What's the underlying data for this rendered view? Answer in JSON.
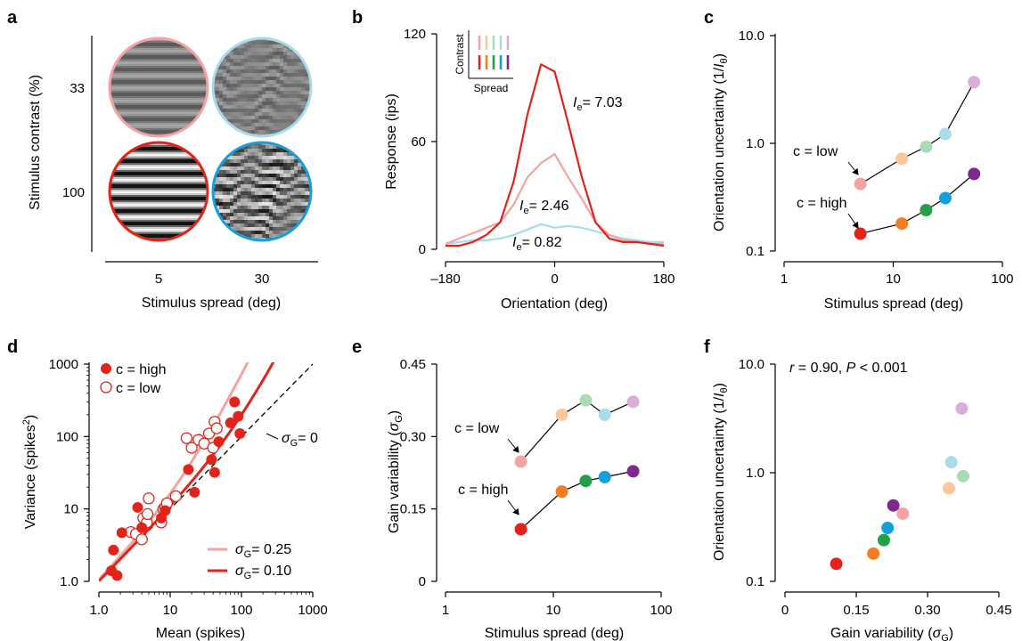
{
  "colors": {
    "low": [
      "#f4a3a3",
      "#fbc89b",
      "#a9dcb4",
      "#a9dcea",
      "#d9afd9"
    ],
    "high": [
      "#e2231a",
      "#f47d20",
      "#22a04a",
      "#16a0db",
      "#7d2a8f"
    ],
    "red": "#e2231a",
    "pink": "#f4a3a3",
    "lightblue": "#a9dcea"
  },
  "chart_data": [
    {
      "panel": "a",
      "type": "other",
      "xlabel": "Stimulus spread (deg)",
      "ylabel": "Stimulus contrast (%)",
      "x_categories": [
        "5",
        "30"
      ],
      "y_categories": [
        "33",
        "100"
      ],
      "stimuli": [
        {
          "contrast": "33",
          "spread": "5",
          "color": "#f4a3a3"
        },
        {
          "contrast": "33",
          "spread": "30",
          "color": "#a9dcea"
        },
        {
          "contrast": "100",
          "spread": "5",
          "color": "#e2231a"
        },
        {
          "contrast": "100",
          "spread": "30",
          "color": "#16a0db"
        }
      ]
    },
    {
      "panel": "b",
      "type": "line",
      "xlabel": "Orientation (deg)",
      "ylabel": "Response (ips)",
      "xlim": [
        -180,
        180
      ],
      "ylim": [
        0,
        120
      ],
      "xticks": [
        "–180",
        "0",
        "180"
      ],
      "yticks": [
        "0",
        "60",
        "120"
      ],
      "x": [
        -180,
        -157.5,
        -135,
        -112.5,
        -90,
        -67.5,
        -45,
        -22.5,
        0,
        22.5,
        45,
        67.5,
        90,
        112.5,
        135,
        157.5,
        180
      ],
      "series": [
        {
          "color": "#e2231a",
          "values": [
            2,
            2,
            4,
            8,
            15,
            38,
            75,
            103,
            99,
            70,
            40,
            15,
            6,
            4,
            4,
            3,
            2
          ]
        },
        {
          "color": "#f4a3a3",
          "values": [
            3,
            6,
            9,
            12,
            15,
            25,
            40,
            48,
            53,
            40,
            28,
            15,
            8,
            5,
            4,
            3,
            3
          ]
        },
        {
          "color": "#a9dcea",
          "values": [
            3,
            4,
            5,
            5,
            6,
            8,
            11,
            14,
            12,
            13,
            12,
            10,
            8,
            6,
            5,
            4,
            4
          ]
        }
      ],
      "labels": [
        {
          "prefix": "I",
          "sub": "e",
          "value": "= 7.03"
        },
        {
          "prefix": "I",
          "sub": "e",
          "value": "= 2.46"
        },
        {
          "prefix": "I",
          "sub": "e",
          "value": "= 0.82"
        }
      ],
      "inset": {
        "ylabel": "Contrast",
        "xlabel": "Spread"
      }
    },
    {
      "panel": "c",
      "type": "scatter",
      "xlabel": "Stimulus spread (deg)",
      "ylabel": "Orientation uncertainty (1/",
      "ylabel_var": "I",
      "ylabel_sub": "θ",
      "ylabel_end": ")",
      "xscale": "log",
      "yscale": "log",
      "xlim": [
        1,
        100
      ],
      "ylim": [
        0.1,
        10
      ],
      "xticks": [
        "1",
        "10",
        "100"
      ],
      "yticks": [
        "0.1",
        "1.0",
        "10.0"
      ],
      "x": [
        5,
        12,
        20,
        30,
        55
      ],
      "series": [
        {
          "name": "c = low",
          "values": [
            0.42,
            0.72,
            0.93,
            1.22,
            3.7
          ]
        },
        {
          "name": "c = high",
          "values": [
            0.145,
            0.18,
            0.24,
            0.31,
            0.52
          ]
        }
      ]
    },
    {
      "panel": "d",
      "type": "scatter",
      "xlabel": "Mean (spikes)",
      "ylabel": "Variance (spikes",
      "ylabel_sup": "2",
      "ylabel_end": ")",
      "xscale": "log",
      "yscale": "log",
      "xlim": [
        1,
        1000
      ],
      "ylim": [
        1,
        1000
      ],
      "xticks": [
        "1.0",
        "10",
        "100",
        "1000"
      ],
      "yticks": [
        "1.0",
        "10",
        "100",
        "1000"
      ],
      "legend": {
        "position": "top-left",
        "entries": [
          "c = high",
          "c = low"
        ]
      },
      "series": [
        {
          "name": "c = high",
          "x": [
            1.5,
            1.6,
            1.8,
            2.1,
            3.5,
            4.0,
            7.5,
            8.5,
            18,
            22,
            38,
            42,
            48,
            70,
            80,
            90,
            95
          ],
          "values": [
            1.4,
            2.7,
            1.2,
            4.7,
            10.5,
            5.5,
            7.5,
            9.5,
            35,
            17,
            48,
            32,
            85,
            155,
            300,
            190,
            110
          ]
        },
        {
          "name": "c = low",
          "x": [
            2.8,
            3.3,
            4.0,
            4.2,
            4.7,
            4.8,
            5.0,
            7.5,
            8.0,
            8.5,
            9.0,
            12,
            17,
            20,
            25,
            30,
            35,
            40,
            42,
            45
          ],
          "values": [
            4.8,
            4.5,
            3.8,
            7.5,
            6.5,
            8.5,
            14,
            6.5,
            10,
            10.5,
            12,
            15,
            95,
            70,
            90,
            80,
            110,
            70,
            160,
            130
          ]
        }
      ],
      "lines": [
        {
          "label": "σ",
          "sub": "G",
          "value": "= 0",
          "style": "dashed"
        },
        {
          "label": "σ",
          "sub": "G",
          "value": "= 0.25",
          "color": "#f4a3a3"
        },
        {
          "label": "σ",
          "sub": "G",
          "value": "= 0.10",
          "color": "#e2231a"
        }
      ]
    },
    {
      "panel": "e",
      "type": "scatter",
      "xlabel": "Stimulus spread (deg)",
      "ylabel": "Gain variability (",
      "ylabel_var": "σ",
      "ylabel_sub": "G",
      "ylabel_end": ")",
      "xscale": "log",
      "xlim": [
        1,
        100
      ],
      "ylim": [
        0,
        0.45
      ],
      "xticks": [
        "1",
        "10",
        "100"
      ],
      "yticks": [
        "0",
        "0.15",
        "0.30",
        "0.45"
      ],
      "x": [
        5,
        12,
        20,
        30,
        55
      ],
      "series": [
        {
          "name": "c = low",
          "values": [
            0.248,
            0.345,
            0.375,
            0.345,
            0.372
          ]
        },
        {
          "name": "c = high",
          "values": [
            0.108,
            0.186,
            0.208,
            0.216,
            0.228
          ]
        }
      ]
    },
    {
      "panel": "f",
      "type": "scatter",
      "xlabel": "Gain variability (",
      "xlabel_var": "σ",
      "xlabel_sub": "G",
      "xlabel_end": ")",
      "ylabel": "Orientation uncertainty (1/",
      "ylabel_var": "I",
      "ylabel_sub": "θ",
      "ylabel_end": ")",
      "yscale": "log",
      "xlim": [
        0,
        0.45
      ],
      "ylim": [
        0.1,
        10
      ],
      "xticks": [
        "0",
        "0.15",
        "0.30",
        "0.45"
      ],
      "yticks": [
        "0.1",
        "1.0",
        "10.0"
      ],
      "stats": {
        "r_label": "r",
        "r_value": " = 0.90, ",
        "p_label": "P",
        "p_value": " < 0.001"
      },
      "points": [
        {
          "x": 0.108,
          "y": 0.145,
          "color": "#e2231a"
        },
        {
          "x": 0.186,
          "y": 0.18,
          "color": "#f47d20"
        },
        {
          "x": 0.208,
          "y": 0.24,
          "color": "#22a04a"
        },
        {
          "x": 0.216,
          "y": 0.31,
          "color": "#16a0db"
        },
        {
          "x": 0.228,
          "y": 0.5,
          "color": "#7d2a8f"
        },
        {
          "x": 0.248,
          "y": 0.42,
          "color": "#f4a3a3"
        },
        {
          "x": 0.345,
          "y": 0.72,
          "color": "#fbc89b"
        },
        {
          "x": 0.375,
          "y": 0.93,
          "color": "#a9dcb4"
        },
        {
          "x": 0.35,
          "y": 1.25,
          "color": "#a9dcea"
        },
        {
          "x": 0.372,
          "y": 3.9,
          "color": "#d9afd9"
        }
      ]
    }
  ]
}
